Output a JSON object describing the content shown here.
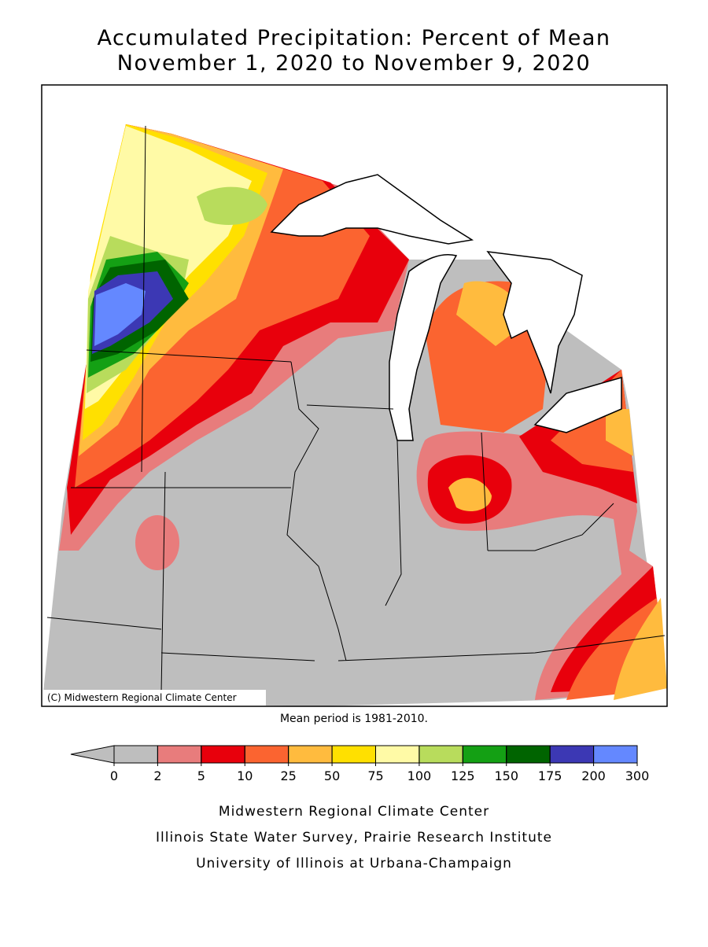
{
  "title": [
    "Accumulated Precipitation: Percent of Mean",
    "November 1, 2020 to November 9, 2020"
  ],
  "copyright": "(C) Midwestern Regional Climate Center",
  "note": "Mean period is 1981-2010.",
  "legend": {
    "ticks": [
      0,
      2,
      5,
      10,
      25,
      50,
      75,
      100,
      125,
      150,
      175,
      200,
      300
    ],
    "under_color": "#bebebe",
    "colors": [
      "#bebebe",
      "#e87c7c",
      "#e8000c",
      "#fb6430",
      "#ffbb3e",
      "#ffe000",
      "#fffaa6",
      "#b8dc5c",
      "#14a014",
      "#006400",
      "#3c38b4",
      "#6488ff"
    ]
  },
  "footer": [
    "Midwestern Regional Climate Center",
    "Illinois State Water Survey, Prairie Research Institute",
    "University of Illinois at Urbana-Champaign"
  ]
}
